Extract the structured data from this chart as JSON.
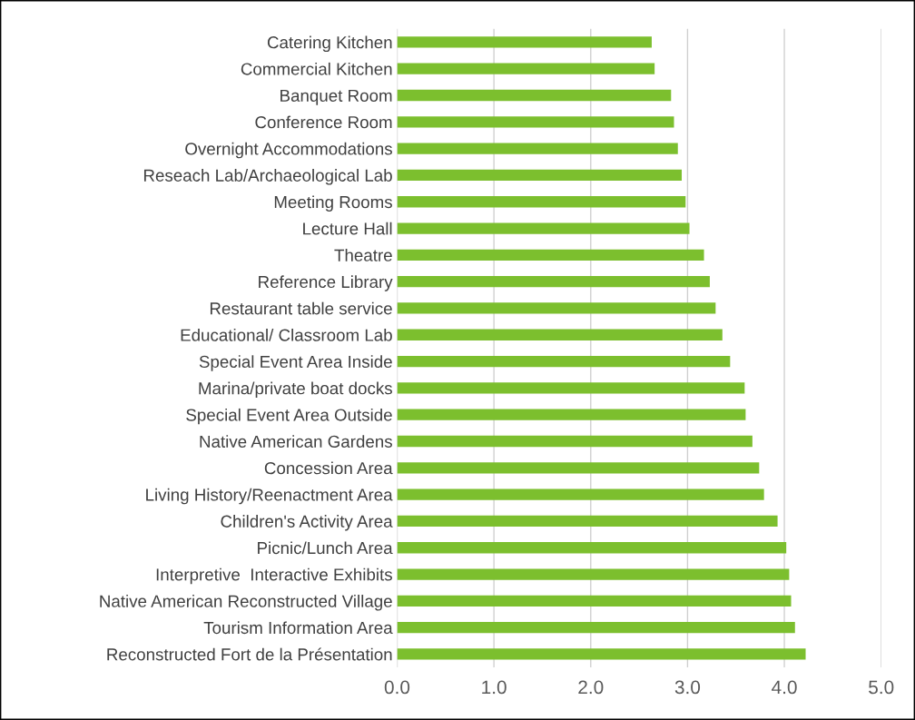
{
  "chart_data": {
    "type": "bar",
    "orientation": "horizontal",
    "categories": [
      "Catering Kitchen",
      "Commercial Kitchen",
      "Banquet Room",
      "Conference Room",
      "Overnight Accommodations",
      "Reseach Lab/Archaeological Lab",
      "Meeting Rooms",
      "Lecture Hall",
      "Theatre",
      "Reference Library",
      "Restaurant table service",
      "Educational/ Classroom Lab",
      "Special Event Area Inside",
      "Marina/private boat docks",
      "Special Event Area Outside",
      "Native American Gardens",
      "Concession Area",
      "Living History/Reenactment Area",
      "Children's Activity Area",
      "Picnic/Lunch Area",
      "Interpretive  Interactive Exhibits",
      "Native American Reconstructed Village",
      "Tourism Information Area",
      "Reconstructed Fort de la Présentation"
    ],
    "values": [
      2.63,
      2.66,
      2.83,
      2.86,
      2.9,
      2.94,
      2.98,
      3.02,
      3.17,
      3.23,
      3.29,
      3.36,
      3.44,
      3.59,
      3.6,
      3.67,
      3.74,
      3.79,
      3.93,
      4.02,
      4.05,
      4.07,
      4.11,
      4.22
    ],
    "color": "#7cbf2e",
    "xlim": [
      0,
      5
    ],
    "xticks": [
      {
        "value": 0,
        "label": "0.0"
      },
      {
        "value": 1,
        "label": "1.0"
      },
      {
        "value": 2,
        "label": "2.0"
      },
      {
        "value": 3,
        "label": "3.0"
      },
      {
        "value": 4,
        "label": "4.0"
      },
      {
        "value": 5,
        "label": "5.0"
      }
    ],
    "grid": "x"
  }
}
